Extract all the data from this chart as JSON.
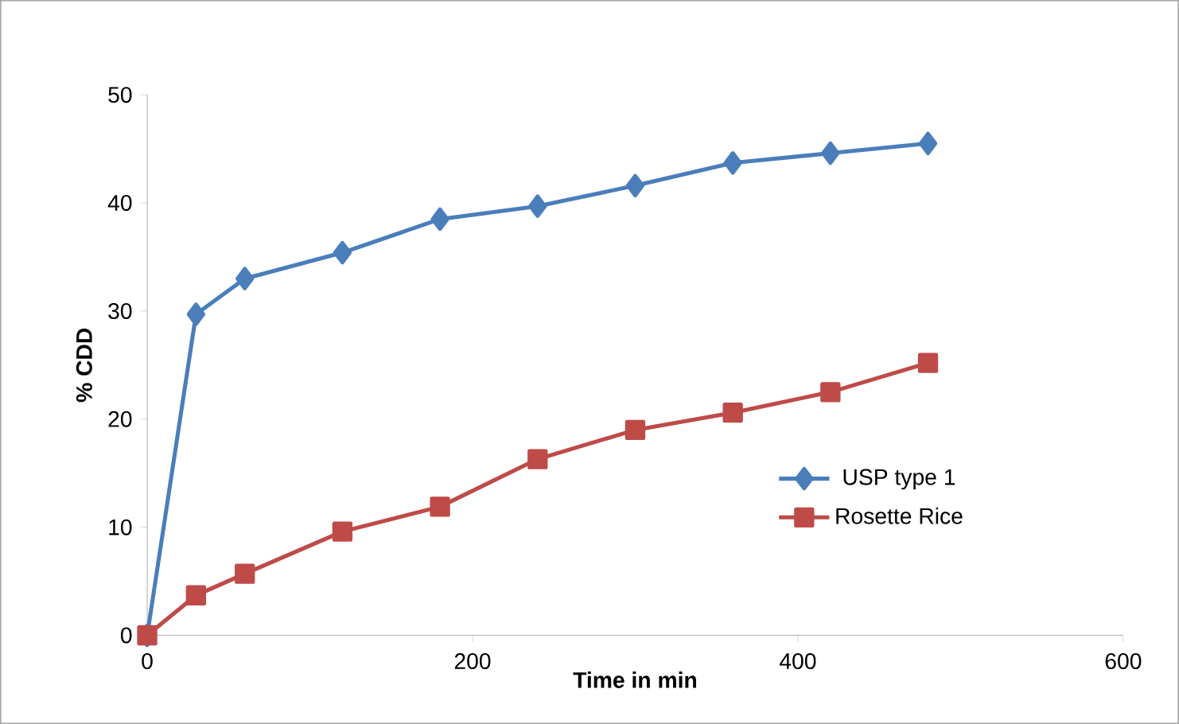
{
  "chart_data": {
    "type": "line",
    "xlabel": "Time in min",
    "ylabel": "% CDD",
    "xlim": [
      0,
      600
    ],
    "xticks": [
      0,
      200,
      400,
      600
    ],
    "ylim": [
      0,
      50
    ],
    "yticks": [
      0,
      10,
      20,
      30,
      40,
      50
    ],
    "grid": false,
    "legend": "right",
    "series": [
      {
        "name": "USP type 1",
        "color": "#4a7ebb",
        "marker": "diamond",
        "x": [
          0,
          30,
          60,
          120,
          180,
          240,
          300,
          360,
          420,
          480
        ],
        "values": [
          0,
          29.7,
          33.0,
          35.4,
          38.5,
          39.7,
          41.6,
          43.7,
          44.6,
          45.5
        ]
      },
      {
        "name": "Rosette Rice",
        "color": "#be4b48",
        "marker": "square",
        "x": [
          0,
          30,
          60,
          120,
          180,
          240,
          300,
          360,
          420,
          480
        ],
        "values": [
          0,
          3.7,
          5.7,
          9.6,
          11.9,
          16.3,
          19.0,
          20.6,
          22.5,
          25.2
        ]
      }
    ]
  }
}
